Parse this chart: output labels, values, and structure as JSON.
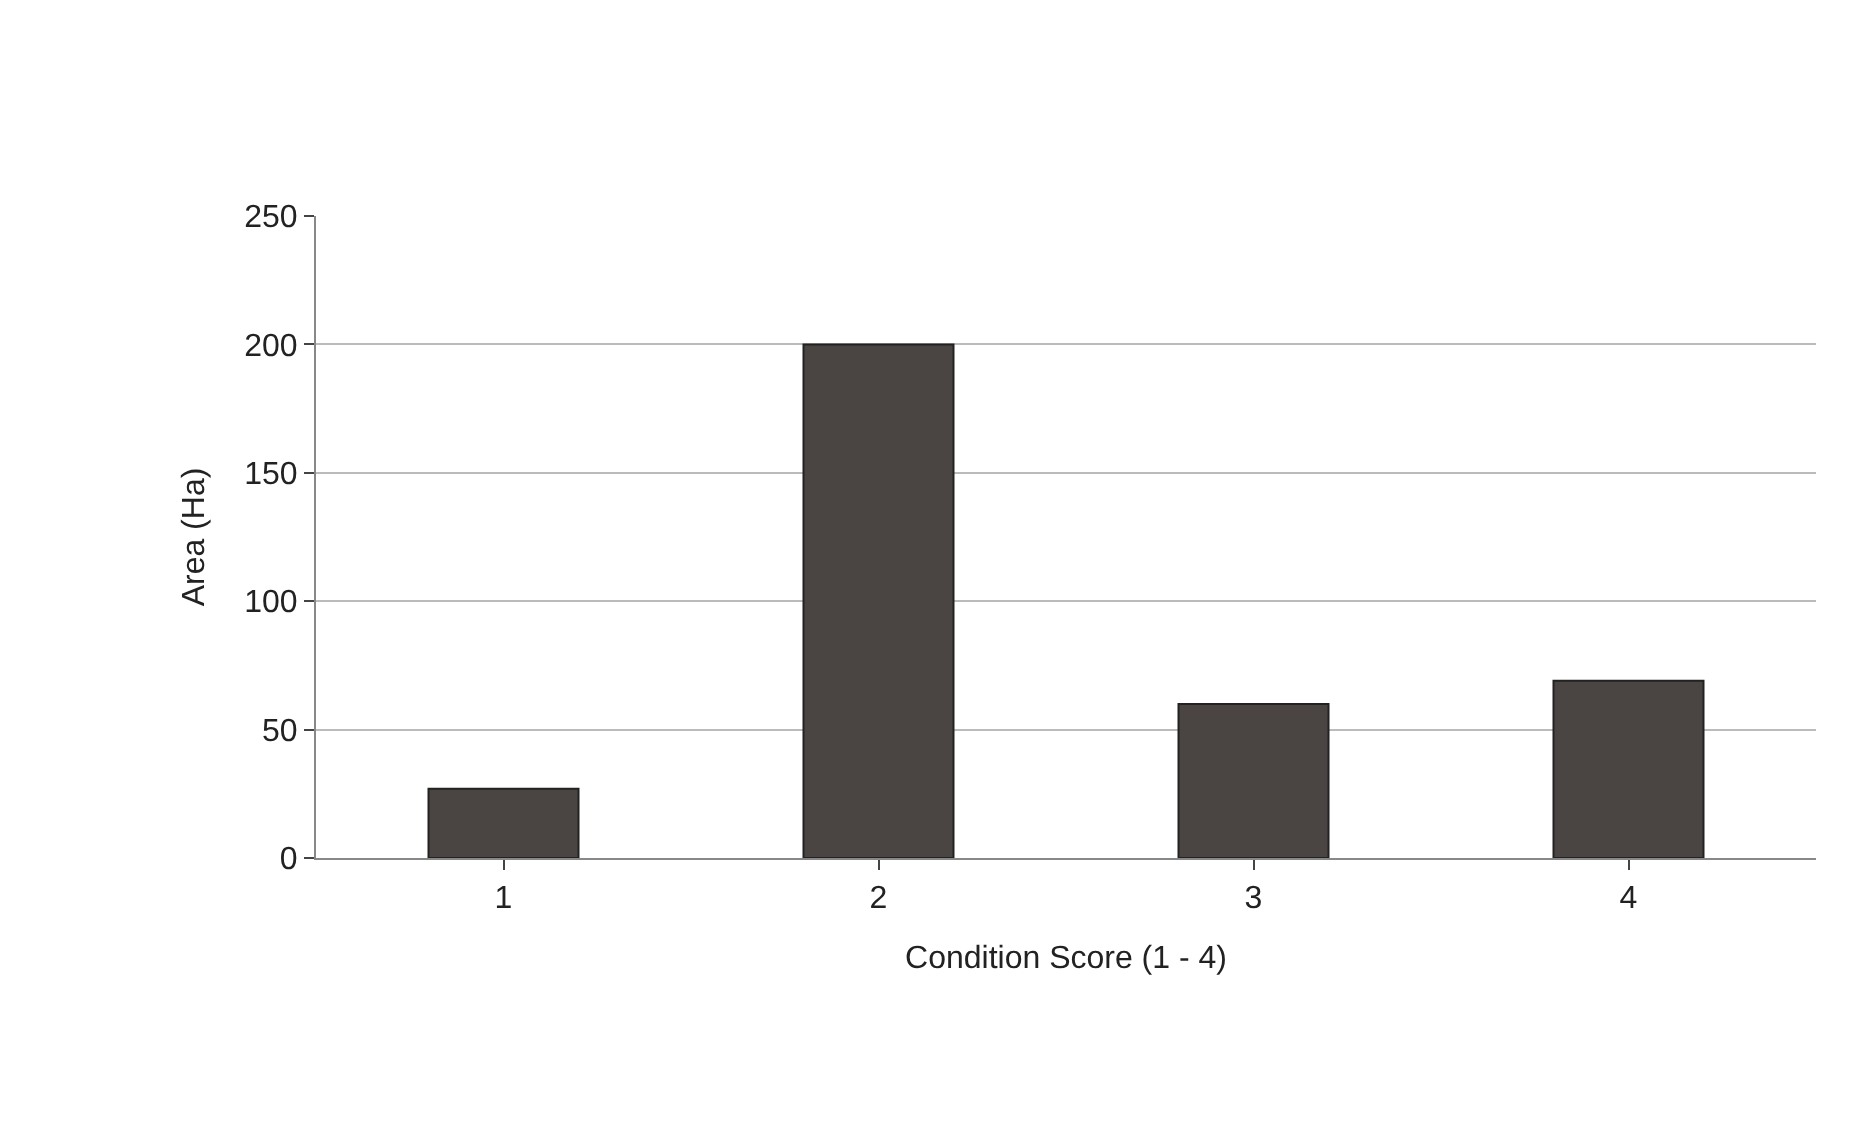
{
  "chart_data": {
    "type": "bar",
    "xlabel": "Condition Score (1 - 4)",
    "ylabel": "Area (Ha)",
    "categories": [
      "1",
      "2",
      "3",
      "4"
    ],
    "series": [
      {
        "color": "#4a4442",
        "values": [
          27,
          200,
          60,
          69
        ]
      }
    ],
    "ylim": [
      0,
      250
    ],
    "yticks": [
      0,
      50,
      100,
      150,
      200,
      250
    ],
    "grid": "y"
  }
}
